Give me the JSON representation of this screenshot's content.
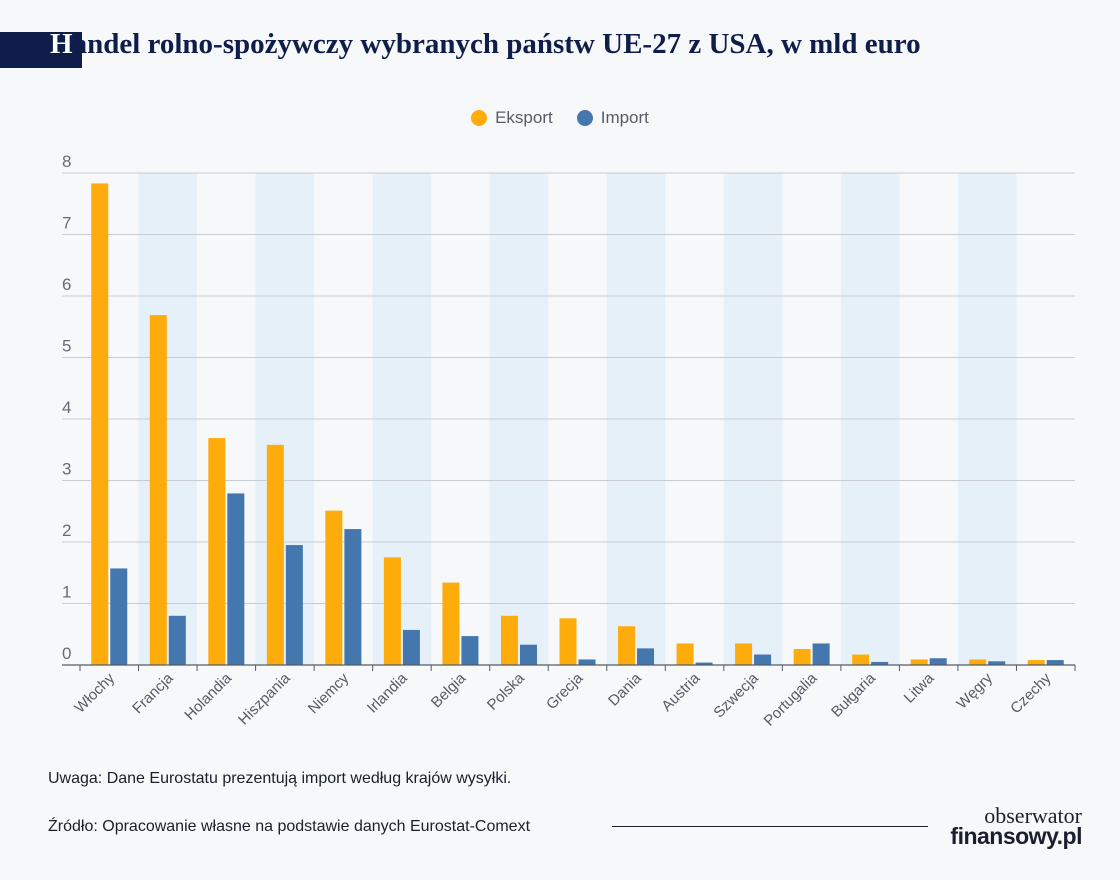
{
  "header": {
    "title_first": "H",
    "title_rest": "andel rolno-spożywczy wybranych państw UE-27 z USA, w mld euro"
  },
  "colors": {
    "export": "#fdac0c",
    "import": "#4377ad",
    "band": "#e5f0f8",
    "grid": "#c9ccd2",
    "axis": "#555c66"
  },
  "chart_data": {
    "type": "bar",
    "title": "Handel rolno-spożywczy wybranych państw UE-27 z USA, w mld euro",
    "xlabel": "",
    "ylabel": "",
    "ylim": [
      0,
      8
    ],
    "yticks": [
      "0",
      "1",
      "2",
      "3",
      "4",
      "5",
      "6",
      "7",
      "8"
    ],
    "grid": true,
    "legend_position": "top-center",
    "categories": [
      "Włochy",
      "Francja",
      "Holandia",
      "Hiszpania",
      "Niemcy",
      "Irlandia",
      "Belgia",
      "Polska",
      "Grecja",
      "Dania",
      "Austria",
      "Szwecja",
      "Portugalia",
      "Bułgaria",
      "Litwa",
      "Węgry",
      "Czechy"
    ],
    "series": [
      {
        "name": "Eksport",
        "values": [
          7.83,
          5.69,
          3.69,
          3.58,
          2.51,
          1.75,
          1.34,
          0.8,
          0.76,
          0.63,
          0.35,
          0.35,
          0.26,
          0.17,
          0.09,
          0.09,
          0.08
        ]
      },
      {
        "name": "Import",
        "values": [
          1.57,
          0.8,
          2.79,
          1.95,
          2.21,
          0.57,
          0.47,
          0.33,
          0.09,
          0.27,
          0.04,
          0.17,
          0.35,
          0.05,
          0.11,
          0.06,
          0.08
        ]
      }
    ]
  },
  "footer": {
    "note": "Uwaga: Dane Eurostatu prezentują import według krajów wysyłki.",
    "source": "Źródło: Opracowanie własne na podstawie danych Eurostat-Comext",
    "logo_line1": "obserwator",
    "logo_line2": "finansowy.pl"
  }
}
